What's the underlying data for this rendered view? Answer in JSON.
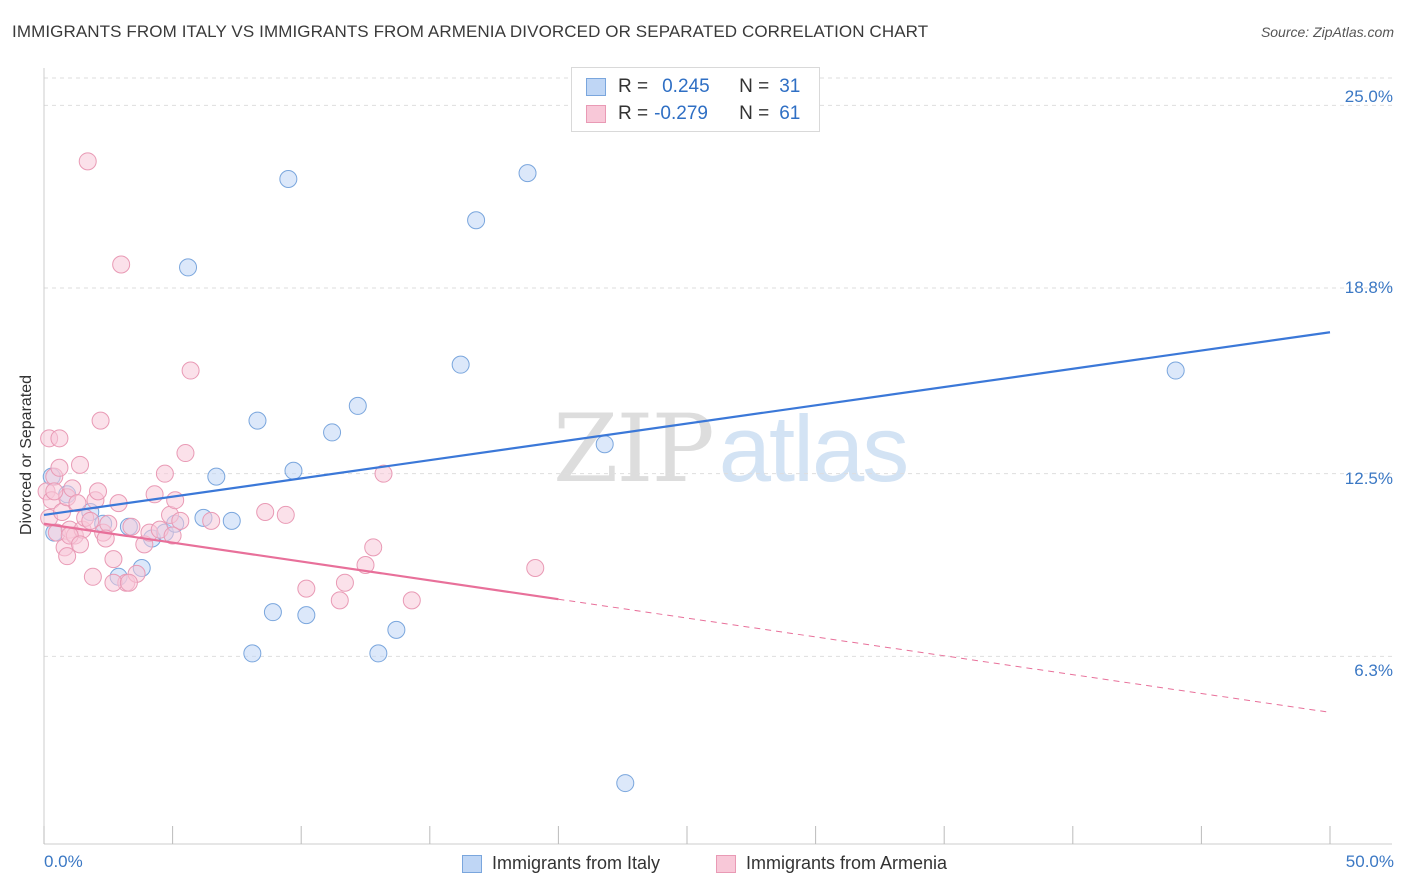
{
  "title": "IMMIGRANTS FROM ITALY VS IMMIGRANTS FROM ARMENIA DIVORCED OR SEPARATED CORRELATION CHART",
  "source": "Source: ZipAtlas.com",
  "watermark": {
    "zip": "ZIP",
    "atlas": "atlas"
  },
  "legend": {
    "italy": {
      "r_label": "R =",
      "r_value": "0.245",
      "n_label": "N =",
      "n_value": "31"
    },
    "armenia": {
      "r_label": "R =",
      "r_value": "-0.279",
      "n_label": "N =",
      "n_value": "61"
    }
  },
  "colors": {
    "italy": "#3b78d8",
    "italy_fill": "#bfd6f5",
    "armenia": "#e8709a",
    "armenia_fill": "#f8c8d8"
  },
  "chart_data": {
    "type": "scatter",
    "title": "IMMIGRANTS FROM ITALY VS IMMIGRANTS FROM ARMENIA DIVORCED OR SEPARATED CORRELATION CHART",
    "xlabel": "",
    "ylabel": "Divorced or Separated",
    "xlim": [
      0,
      50
    ],
    "ylim": [
      0,
      26.2
    ],
    "x_tick_labels": [
      "0.0%",
      "50.0%"
    ],
    "y_ticks": [
      6.3,
      12.5,
      18.8,
      25.0
    ],
    "y_tick_labels": [
      "6.3%",
      "12.5%",
      "18.8%",
      "25.0%"
    ],
    "series": [
      {
        "name": "Immigrants from Italy",
        "R": 0.245,
        "N": 31,
        "trend": {
          "x": [
            0,
            50
          ],
          "y": [
            11.1,
            17.3
          ],
          "dashed_from": null
        },
        "points": [
          [
            0.3,
            12.4
          ],
          [
            1.8,
            11.2
          ],
          [
            2.3,
            10.8
          ],
          [
            2.9,
            9.0
          ],
          [
            3.3,
            10.7
          ],
          [
            3.8,
            9.3
          ],
          [
            4.2,
            10.3
          ],
          [
            4.7,
            10.5
          ],
          [
            5.1,
            10.8
          ],
          [
            5.6,
            19.5
          ],
          [
            6.2,
            11.0
          ],
          [
            6.7,
            12.4
          ],
          [
            7.3,
            10.9
          ],
          [
            8.1,
            6.4
          ],
          [
            8.3,
            14.3
          ],
          [
            8.9,
            7.8
          ],
          [
            9.5,
            22.5
          ],
          [
            9.7,
            12.6
          ],
          [
            10.2,
            7.7
          ],
          [
            11.2,
            13.9
          ],
          [
            12.2,
            14.8
          ],
          [
            13.0,
            6.4
          ],
          [
            13.7,
            7.2
          ],
          [
            16.2,
            16.2
          ],
          [
            16.8,
            21.1
          ],
          [
            18.8,
            22.7
          ],
          [
            21.8,
            13.5
          ],
          [
            0.4,
            10.5
          ],
          [
            0.9,
            11.8
          ],
          [
            22.6,
            2.0
          ],
          [
            44.0,
            16.0
          ]
        ]
      },
      {
        "name": "Immigrants from Armenia",
        "R": -0.279,
        "N": 61,
        "trend": {
          "x": [
            0,
            50
          ],
          "y": [
            10.8,
            4.4
          ],
          "solid_until_x": 20.0
        },
        "points": [
          [
            0.1,
            11.9
          ],
          [
            0.2,
            11.0
          ],
          [
            0.3,
            11.6
          ],
          [
            0.4,
            12.4
          ],
          [
            0.5,
            10.5
          ],
          [
            0.6,
            12.7
          ],
          [
            0.7,
            11.2
          ],
          [
            0.8,
            10.0
          ],
          [
            0.9,
            11.7
          ],
          [
            1.0,
            10.6
          ],
          [
            1.1,
            12.0
          ],
          [
            1.2,
            10.4
          ],
          [
            1.3,
            11.5
          ],
          [
            1.4,
            12.8
          ],
          [
            1.5,
            10.6
          ],
          [
            1.6,
            11.0
          ],
          [
            1.7,
            23.1
          ],
          [
            1.8,
            10.9
          ],
          [
            1.9,
            9.0
          ],
          [
            2.0,
            11.6
          ],
          [
            2.1,
            11.9
          ],
          [
            2.2,
            14.3
          ],
          [
            2.3,
            10.5
          ],
          [
            2.5,
            10.8
          ],
          [
            2.7,
            9.6
          ],
          [
            2.9,
            11.5
          ],
          [
            3.0,
            19.6
          ],
          [
            3.2,
            8.8
          ],
          [
            3.4,
            10.7
          ],
          [
            3.6,
            9.1
          ],
          [
            3.9,
            10.1
          ],
          [
            4.1,
            10.5
          ],
          [
            4.3,
            11.8
          ],
          [
            4.5,
            10.6
          ],
          [
            4.7,
            12.5
          ],
          [
            4.9,
            11.1
          ],
          [
            5.1,
            11.6
          ],
          [
            5.3,
            10.9
          ],
          [
            5.5,
            13.2
          ],
          [
            5.7,
            16.0
          ],
          [
            0.2,
            13.7
          ],
          [
            0.6,
            13.7
          ],
          [
            6.5,
            10.9
          ],
          [
            8.6,
            11.2
          ],
          [
            9.4,
            11.1
          ],
          [
            10.2,
            8.6
          ],
          [
            11.5,
            8.2
          ],
          [
            11.7,
            8.8
          ],
          [
            12.5,
            9.4
          ],
          [
            12.8,
            10.0
          ],
          [
            13.2,
            12.5
          ],
          [
            14.3,
            8.2
          ],
          [
            19.1,
            9.3
          ],
          [
            0.9,
            9.7
          ],
          [
            1.0,
            10.4
          ],
          [
            2.7,
            8.8
          ],
          [
            1.4,
            10.1
          ],
          [
            0.4,
            11.9
          ],
          [
            5.0,
            10.4
          ],
          [
            3.3,
            8.8
          ],
          [
            2.4,
            10.3
          ]
        ]
      }
    ]
  },
  "bottom_legend": {
    "italy": "Immigrants from Italy",
    "armenia": "Immigrants from Armenia"
  }
}
